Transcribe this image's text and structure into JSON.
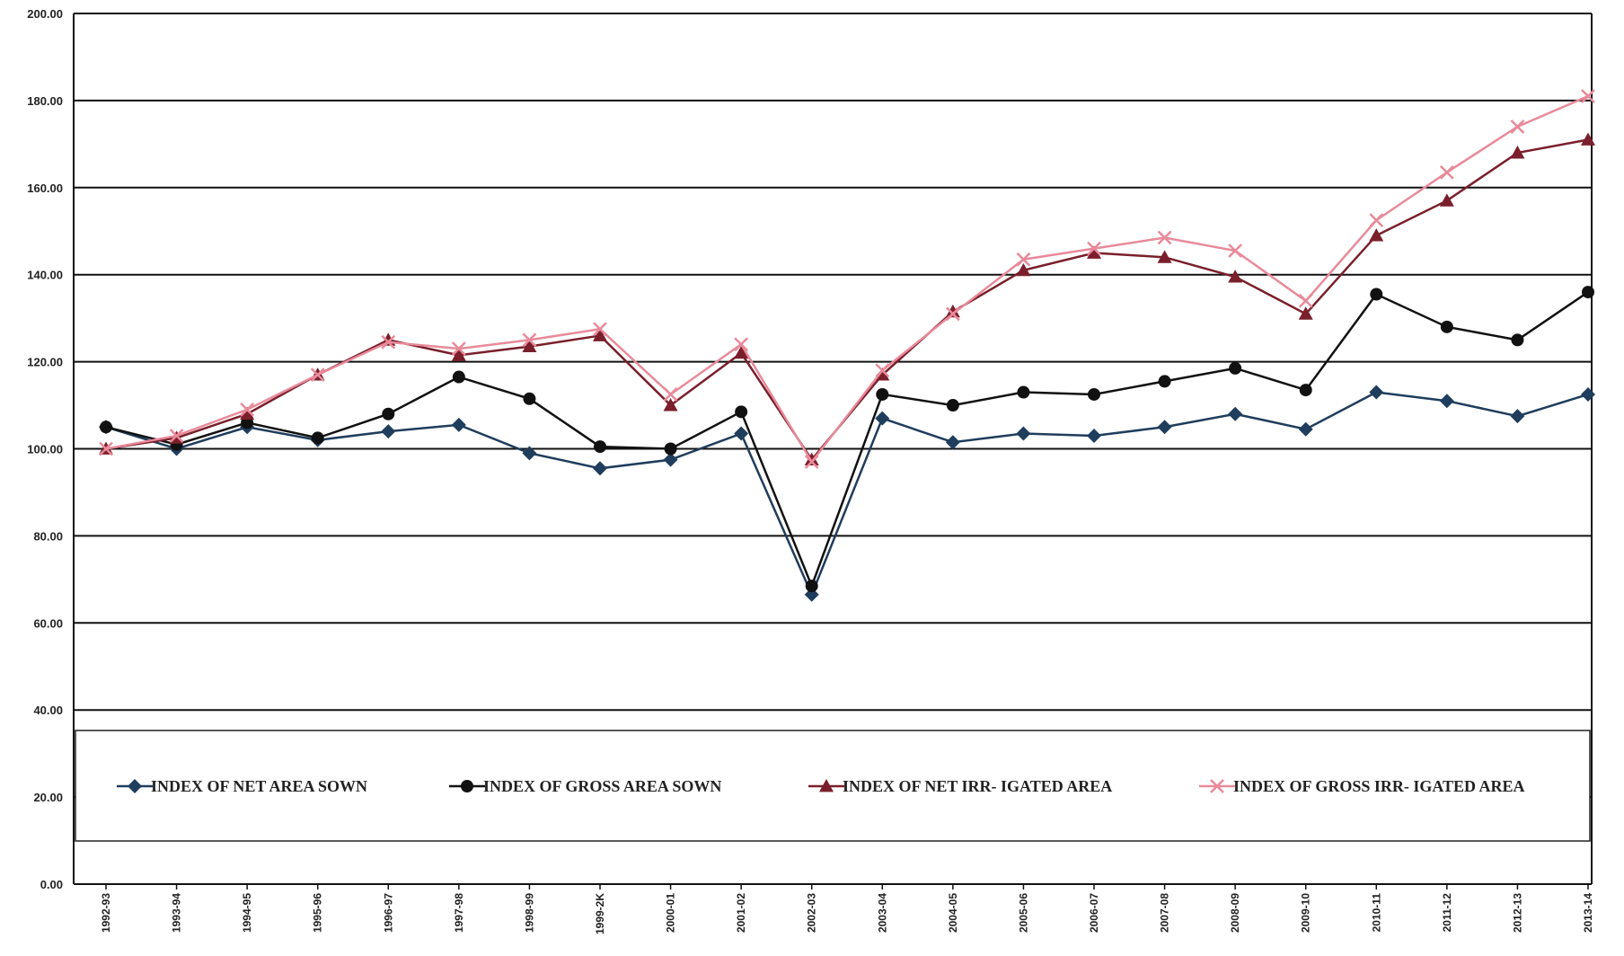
{
  "chart_data": {
    "type": "line",
    "title": "",
    "xlabel": "",
    "ylabel": "",
    "ylim": [
      0,
      200
    ],
    "yticks": [
      "0.00",
      "20.00",
      "40.00",
      "60.00",
      "80.00",
      "100.00",
      "120.00",
      "140.00",
      "160.00",
      "180.00",
      "200.00"
    ],
    "grid": "horizontal",
    "legend_position": "bottom",
    "categories": [
      "1992-93",
      "1993-94",
      "1994-95",
      "1995-96",
      "1996-97",
      "1997-98",
      "1998-99",
      "1999-2K",
      "2000-01",
      "2001-02",
      "2002-03",
      "2003-04",
      "2004-05",
      "2005-06",
      "2006-07",
      "2007-08",
      "2008-09",
      "2009-10",
      "2010-11",
      "2011-12",
      "2012-13",
      "2013-14"
    ],
    "series": [
      {
        "name": "INDEX OF NET AREA SOWN",
        "color": "#1f3d5c",
        "marker": "diamond",
        "values": [
          105,
          100,
          105,
          102,
          104,
          105.5,
          99,
          95.5,
          97.5,
          103.5,
          66.5,
          107,
          101.5,
          103.5,
          103,
          105,
          108,
          104.5,
          113,
          111,
          107.5,
          112.5
        ]
      },
      {
        "name": "INDEX OF GROSS AREA SOWN",
        "color": "#111111",
        "marker": "circle",
        "values": [
          105,
          101,
          106,
          102.5,
          108,
          116.5,
          111.5,
          100.5,
          100,
          108.5,
          68.5,
          112.5,
          110,
          113,
          112.5,
          115.5,
          118.5,
          113.5,
          135.5,
          128,
          125,
          136
        ]
      },
      {
        "name": "INDEX OF NET IRR- IGATED AREA",
        "color": "#7a1f2b",
        "marker": "triangle",
        "values": [
          100,
          102.5,
          108,
          117,
          125,
          121.5,
          123.5,
          126,
          110,
          122,
          97.5,
          117,
          131.5,
          141,
          145,
          144,
          139.5,
          131,
          149,
          157,
          168,
          171
        ]
      },
      {
        "name": "INDEX OF GROSS IRR- IGATED AREA",
        "color": "#e88a9a",
        "marker": "x",
        "values": [
          100,
          103,
          109,
          117,
          124.5,
          123,
          125,
          127.5,
          112.5,
          124,
          97,
          118,
          131,
          143.5,
          146,
          148.5,
          145.5,
          134,
          152.5,
          163.5,
          174,
          181
        ]
      }
    ]
  }
}
